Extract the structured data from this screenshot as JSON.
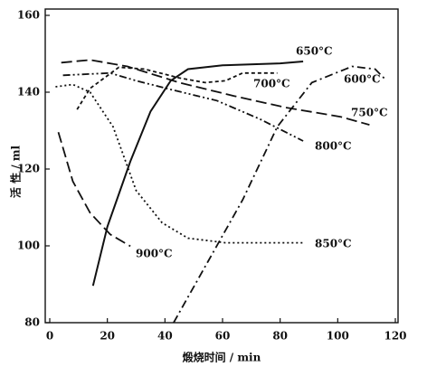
{
  "chart_data": {
    "type": "line",
    "x_label": "煅烧时间 / min",
    "y_label": "活 性 / ml",
    "xlim": [
      0,
      120
    ],
    "xticks": [
      0,
      20,
      40,
      60,
      80,
      100,
      120
    ],
    "ylim": [
      80,
      160
    ],
    "yticks": [
      80,
      100,
      120,
      140,
      160
    ],
    "series": [
      {
        "name": "650°C",
        "color": "#111111",
        "linestyle": "solid",
        "x": [
          15,
          20,
          28,
          35,
          42,
          48,
          60,
          80,
          88
        ],
        "values": [
          89.6,
          105,
          122,
          135,
          143,
          146,
          147,
          147.5,
          148
        ]
      },
      {
        "name": "600°C",
        "color": "#111111",
        "linestyle": "dashdot",
        "x": [
          43,
          55,
          67,
          79,
          91,
          105,
          113,
          117
        ],
        "values": [
          80,
          96,
          112,
          131,
          142.5,
          146.7,
          146,
          143
        ]
      },
      {
        "name": "700°C",
        "color": "#111111",
        "linestyle": "shortdash",
        "x": [
          9.5,
          14,
          24,
          33,
          45,
          54,
          61,
          67,
          79
        ],
        "values": [
          135.5,
          141,
          146.5,
          146,
          143.7,
          142.5,
          143,
          145,
          145
        ]
      },
      {
        "name": "750°C",
        "color": "#111111",
        "linestyle": "longdash",
        "x": [
          4,
          14,
          27,
          45,
          64,
          82,
          101,
          111
        ],
        "values": [
          147.7,
          148.4,
          146.7,
          142.5,
          139,
          136,
          133.6,
          131.5
        ]
      },
      {
        "name": "800°C",
        "color": "#111111",
        "linestyle": "dashdotdot",
        "x": [
          4.6,
          21,
          30,
          42,
          58,
          73,
          88
        ],
        "values": [
          144.4,
          145,
          143,
          140.7,
          137.8,
          133,
          127.3
        ]
      },
      {
        "name": "850°C",
        "color": "#111111",
        "linestyle": "dotted",
        "x": [
          2,
          8,
          14,
          22,
          30,
          39,
          48,
          61,
          88
        ],
        "values": [
          141.4,
          142,
          140,
          131,
          114.4,
          106,
          102,
          100.8,
          100.8
        ]
      },
      {
        "name": "900°C",
        "color": "#111111",
        "linestyle": "longdash",
        "x": [
          3,
          8,
          14,
          21,
          28
        ],
        "values": [
          129.6,
          116.8,
          108.6,
          103,
          99.9
        ]
      }
    ]
  }
}
